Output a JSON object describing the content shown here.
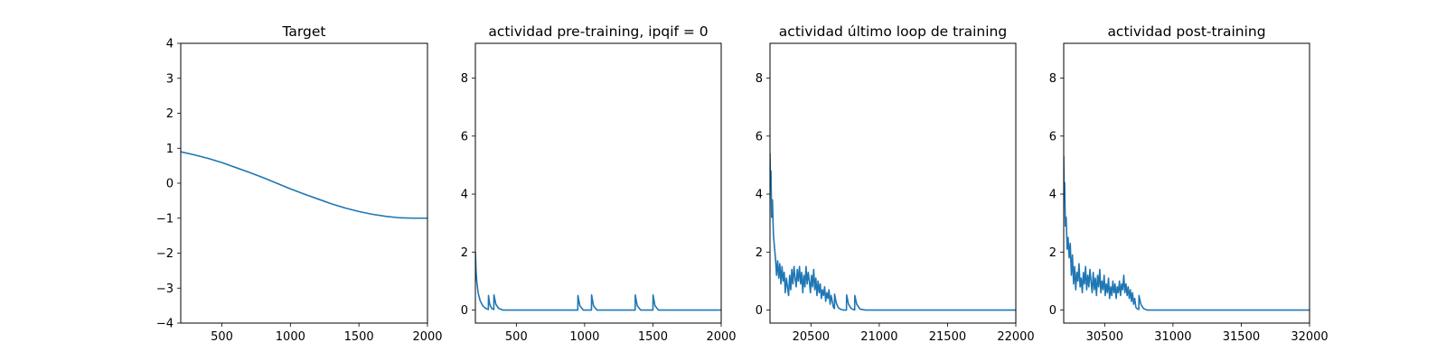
{
  "figure": {
    "background": "#ffffff",
    "line_color": "#1f77b4"
  },
  "chart_data": [
    {
      "type": "line",
      "title": "Target",
      "xlim": [
        200,
        2000
      ],
      "ylim": [
        -4,
        4
      ],
      "xticks": [
        500,
        1000,
        1500,
        2000
      ],
      "xtick_labels": [
        "500",
        "1000",
        "1500",
        "2000"
      ],
      "yticks": [
        -4,
        -3,
        -2,
        -1,
        0,
        1,
        2,
        3,
        4
      ],
      "ytick_labels": [
        "−4",
        "−3",
        "−2",
        "−1",
        "0",
        "1",
        "2",
        "3",
        "4"
      ],
      "series": [
        {
          "x": [
            200,
            300,
            400,
            500,
            600,
            700,
            800,
            900,
            1000,
            1100,
            1200,
            1300,
            1400,
            1500,
            1600,
            1700,
            1800,
            1900,
            2000
          ],
          "y": [
            0.9,
            0.81,
            0.71,
            0.59,
            0.45,
            0.31,
            0.16,
            0.0,
            -0.16,
            -0.31,
            -0.45,
            -0.59,
            -0.71,
            -0.81,
            -0.89,
            -0.95,
            -0.99,
            -1.0,
            -1.0
          ]
        }
      ]
    },
    {
      "type": "line",
      "title": "actividad pre-training, ipqif = 0",
      "xlim": [
        200,
        2000
      ],
      "ylim": [
        -0.45,
        9.2
      ],
      "xticks": [
        500,
        1000,
        1500,
        2000
      ],
      "xtick_labels": [
        "500",
        "1000",
        "1500",
        "2000"
      ],
      "yticks": [
        0,
        2,
        4,
        6,
        8
      ],
      "ytick_labels": [
        "0",
        "2",
        "4",
        "6",
        "8"
      ],
      "series": [
        {
          "x": [
            200,
            205,
            210,
            220,
            235,
            255,
            275,
            295,
            296,
            305,
            320,
            335,
            336,
            350,
            370,
            400,
            950,
            951,
            965,
            990,
            1050,
            1051,
            1065,
            1090,
            1370,
            1371,
            1385,
            1410,
            1500,
            1501,
            1515,
            1540,
            1600,
            2000
          ],
          "y": [
            2.0,
            1.35,
            1.0,
            0.6,
            0.32,
            0.14,
            0.06,
            0.02,
            0.5,
            0.2,
            0.05,
            0.02,
            0.52,
            0.2,
            0.06,
            0.0,
            0.0,
            0.5,
            0.15,
            0.0,
            0.0,
            0.52,
            0.15,
            0.0,
            0.0,
            0.52,
            0.15,
            0.0,
            0.0,
            0.52,
            0.15,
            0.0,
            0.0,
            0.0
          ]
        }
      ]
    },
    {
      "type": "line",
      "title": "actividad último loop de training",
      "xlim": [
        20200,
        22000
      ],
      "ylim": [
        -0.45,
        9.2
      ],
      "xticks": [
        20500,
        21000,
        21500,
        22000
      ],
      "xtick_labels": [
        "20500",
        "21000",
        "21500",
        "22000"
      ],
      "yticks": [
        0,
        2,
        4,
        6,
        8
      ],
      "ytick_labels": [
        "0",
        "2",
        "4",
        "6",
        "8"
      ],
      "series": [
        {
          "x": [
            20200,
            20203,
            20207,
            20212,
            20218,
            20225,
            20232,
            20240,
            20248,
            20256,
            20264,
            20272,
            20280,
            20288,
            20296,
            20304,
            20312,
            20320,
            20328,
            20336,
            20344,
            20352,
            20360,
            20368,
            20376,
            20384,
            20392,
            20400,
            20408,
            20416,
            20424,
            20432,
            20440,
            20448,
            20456,
            20464,
            20472,
            20480,
            20488,
            20496,
            20504,
            20512,
            20520,
            20528,
            20536,
            20544,
            20552,
            20560,
            20568,
            20576,
            20584,
            20592,
            20600,
            20608,
            20616,
            20624,
            20632,
            20640,
            20648,
            20656,
            20664,
            20672,
            20673,
            20685,
            20700,
            20720,
            20740,
            20760,
            20761,
            20775,
            20795,
            20820,
            20821,
            20835,
            20860,
            20900,
            22000
          ],
          "y": [
            5.4,
            4.4,
            4.8,
            3.2,
            3.8,
            2.6,
            2.2,
            1.8,
            1.2,
            1.7,
            1.1,
            1.6,
            0.9,
            1.5,
            1.0,
            1.3,
            0.6,
            1.1,
            0.8,
            0.5,
            1.2,
            0.7,
            1.4,
            0.9,
            1.5,
            1.1,
            0.8,
            1.4,
            1.0,
            1.5,
            0.9,
            1.3,
            0.6,
            1.2,
            0.8,
            1.5,
            0.9,
            1.3,
            1.0,
            0.6,
            1.2,
            0.8,
            1.4,
            0.7,
            1.1,
            0.5,
            1.0,
            0.6,
            0.9,
            0.4,
            0.7,
            0.5,
            0.8,
            0.3,
            0.6,
            0.4,
            0.7,
            0.2,
            0.5,
            0.3,
            0.1,
            0.05,
            0.55,
            0.25,
            0.08,
            0.02,
            0.0,
            0.0,
            0.52,
            0.2,
            0.05,
            0.0,
            0.5,
            0.2,
            0.03,
            0.0,
            0.0
          ]
        }
      ]
    },
    {
      "type": "line",
      "title": "actividad post-training",
      "xlim": [
        30200,
        32000
      ],
      "ylim": [
        -0.45,
        9.2
      ],
      "xticks": [
        30500,
        31000,
        31500,
        32000
      ],
      "xtick_labels": [
        "30500",
        "31000",
        "31500",
        "32000"
      ],
      "yticks": [
        0,
        2,
        4,
        6,
        8
      ],
      "ytick_labels": [
        "0",
        "2",
        "4",
        "6",
        "8"
      ],
      "series": [
        {
          "x": [
            30200,
            30203,
            30207,
            30212,
            30218,
            30225,
            30232,
            30240,
            30248,
            30256,
            30264,
            30272,
            30280,
            30288,
            30296,
            30304,
            30312,
            30320,
            30328,
            30336,
            30344,
            30352,
            30360,
            30368,
            30376,
            30384,
            30392,
            30400,
            30408,
            30416,
            30424,
            30432,
            30440,
            30448,
            30456,
            30464,
            30472,
            30480,
            30488,
            30496,
            30504,
            30512,
            30520,
            30528,
            30536,
            30544,
            30552,
            30560,
            30568,
            30576,
            30584,
            30592,
            30600,
            30608,
            30616,
            30624,
            30632,
            30640,
            30648,
            30656,
            30664,
            30672,
            30680,
            30688,
            30696,
            30704,
            30712,
            30720,
            30728,
            30736,
            30750,
            30751,
            30765,
            30785,
            30810,
            30850,
            32000
          ],
          "y": [
            5.3,
            3.9,
            4.4,
            2.9,
            3.2,
            2.1,
            2.5,
            1.8,
            2.3,
            1.2,
            1.9,
            0.9,
            1.5,
            0.7,
            1.3,
            1.0,
            1.6,
            0.8,
            1.1,
            0.6,
            1.3,
            0.9,
            1.5,
            0.7,
            1.2,
            0.8,
            1.4,
            1.0,
            0.6,
            1.3,
            0.7,
            1.1,
            0.5,
            1.2,
            0.8,
            1.4,
            0.6,
            1.0,
            0.7,
            1.2,
            0.5,
            0.9,
            0.6,
            1.1,
            0.4,
            0.8,
            0.5,
            1.0,
            0.6,
            0.9,
            0.4,
            0.8,
            0.6,
            1.0,
            0.5,
            0.9,
            0.7,
            1.2,
            0.6,
            0.9,
            0.5,
            0.8,
            0.4,
            0.7,
            0.3,
            0.6,
            0.2,
            0.4,
            0.1,
            0.05,
            0.02,
            0.5,
            0.2,
            0.05,
            0.0,
            0.0,
            0.0
          ]
        }
      ]
    }
  ]
}
